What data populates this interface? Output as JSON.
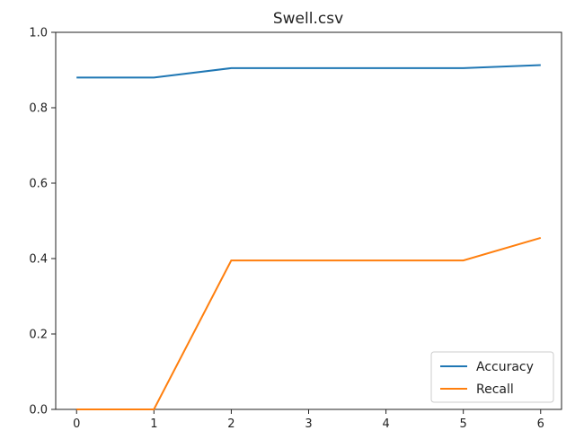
{
  "chart_data": {
    "type": "line",
    "title": "Swell.csv",
    "xlabel": "",
    "ylabel": "",
    "x": [
      0,
      1,
      2,
      3,
      4,
      5,
      6
    ],
    "xlim": [
      -0.27,
      6.27
    ],
    "ylim": [
      0.0,
      1.0
    ],
    "xticks": [
      0,
      1,
      2,
      3,
      4,
      5,
      6
    ],
    "yticks": [
      0.0,
      0.2,
      0.4,
      0.6,
      0.8,
      1.0
    ],
    "grid": false,
    "legend": "lower-right",
    "series": [
      {
        "name": "Accuracy",
        "color": "#1f77b4",
        "values": [
          0.88,
          0.88,
          0.905,
          0.905,
          0.905,
          0.905,
          0.913
        ]
      },
      {
        "name": "Recall",
        "color": "#ff7f0e",
        "values": [
          0.0,
          0.0,
          0.395,
          0.395,
          0.395,
          0.395,
          0.455
        ]
      }
    ]
  }
}
